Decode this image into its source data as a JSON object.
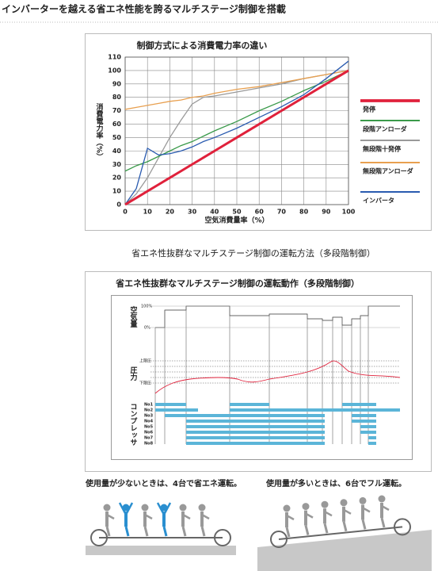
{
  "header": {
    "title": "インバーターを越える省エネ性能を誇るマルチステージ制御を搭載"
  },
  "chart_data": {
    "type": "line",
    "title": "制御方式による消費電力率の違い",
    "xlabel": "空気消費量率（%）",
    "ylabel": "消費電力率（%）",
    "x": [
      0,
      5,
      10,
      15,
      20,
      25,
      30,
      35,
      40,
      50,
      60,
      70,
      80,
      90,
      100
    ],
    "xlim": [
      0,
      100
    ],
    "ylim": [
      0,
      110
    ],
    "xticks": [
      0,
      10,
      20,
      30,
      40,
      50,
      60,
      70,
      80,
      90,
      100
    ],
    "yticks": [
      0,
      10,
      20,
      30,
      40,
      50,
      60,
      70,
      80,
      90,
      100,
      110
    ],
    "grid": true,
    "legend": "right",
    "series": [
      {
        "name": "発停",
        "color": "#e0213b",
        "width": 3,
        "values": [
          0,
          5,
          10,
          15,
          20,
          25,
          30,
          35,
          40,
          50,
          60,
          70,
          80,
          90,
          100
        ]
      },
      {
        "name": "段階アンローダ",
        "color": "#3a9a4a",
        "width": 1.3,
        "values": [
          25,
          29,
          32,
          36,
          40,
          44,
          47,
          51,
          55,
          62,
          70,
          77,
          85,
          92,
          100
        ]
      },
      {
        "name": "無段階十発停",
        "color": "#9a9a9a",
        "width": 1.3,
        "values": [
          0,
          8,
          20,
          35,
          50,
          63,
          75,
          80,
          81,
          84,
          87,
          90,
          94,
          97,
          100
        ]
      },
      {
        "name": "無段階アンローダ",
        "color": "#e8a050",
        "width": 1.3,
        "values": [
          71,
          72.5,
          74,
          75.5,
          77,
          78,
          80,
          81,
          83,
          86,
          88,
          91,
          94,
          97,
          100
        ]
      },
      {
        "name": "インバータ",
        "color": "#2a5bb0",
        "width": 1.3,
        "values": [
          0,
          12,
          42,
          37,
          38,
          40,
          43,
          47,
          50,
          57,
          65,
          73,
          82,
          94,
          107
        ]
      }
    ]
  },
  "caption": "省エネ性抜群なマルチステージ制御の運転方法（多段階制御）",
  "diagram": {
    "title": "省エネ性抜群なマルチステージ制御の運転動作（多段階制御）",
    "air_label": "空気量",
    "air_max": "100%",
    "air_min": "0%",
    "pressure_label": "圧力",
    "pressure_upper": "上限圧",
    "pressure_lower": "下限圧",
    "compressor_label": "コンプレッサ",
    "units": [
      "No1",
      "No2",
      "No3",
      "No4",
      "No5",
      "No6",
      "No7",
      "No8"
    ]
  },
  "illustrations": {
    "low": "使用量が少ないときは、4台で省エネ運転。",
    "high": "使用量が多いときは、6台でフル運転。"
  }
}
